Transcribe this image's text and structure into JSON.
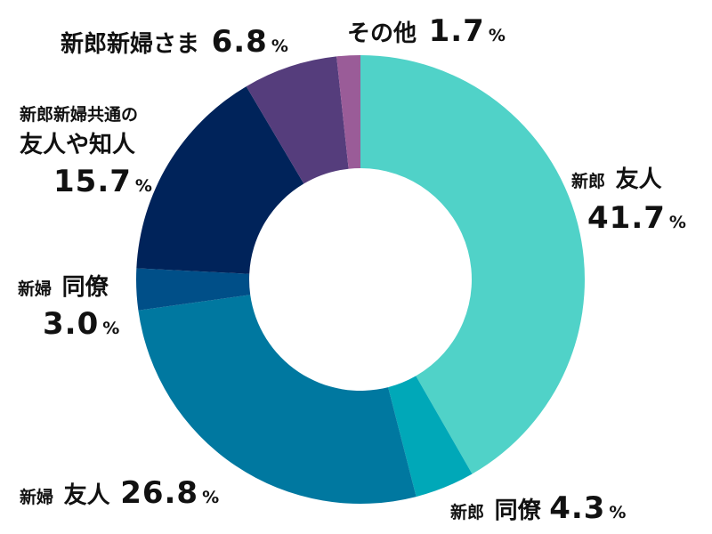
{
  "chart_data": {
    "type": "pie",
    "donut": true,
    "slices": [
      {
        "label": "新郎 友人",
        "prefix": "新郎",
        "main": "友人",
        "value": 41.7,
        "value_text": "41.7",
        "color": "#50D2C8"
      },
      {
        "label": "新郎 同僚",
        "prefix": "新郎",
        "main": "同僚",
        "value": 4.3,
        "value_text": "4.3",
        "color": "#00A8B8"
      },
      {
        "label": "新婦 友人",
        "prefix": "新婦",
        "main": "友人",
        "value": 26.8,
        "value_text": "26.8",
        "color": "#0078A0"
      },
      {
        "label": "新婦 同僚",
        "prefix": "新婦",
        "main": "同僚",
        "value": 3.0,
        "value_text": "3.0",
        "color": "#004F88"
      },
      {
        "label": "新郎新婦共通の友人や知人",
        "prefix": "新郎新婦共通の",
        "main": "友人や知人",
        "value": 15.7,
        "value_text": "15.7",
        "color": "#00235A"
      },
      {
        "label": "新郎新婦さま",
        "prefix": "",
        "main": "新郎新婦さま",
        "value": 6.8,
        "value_text": "6.8",
        "color": "#553D7C"
      },
      {
        "label": "その他",
        "prefix": "",
        "main": "その他",
        "value": 1.7,
        "value_text": "1.7",
        "color": "#9A5C98"
      }
    ],
    "unit": "%"
  }
}
